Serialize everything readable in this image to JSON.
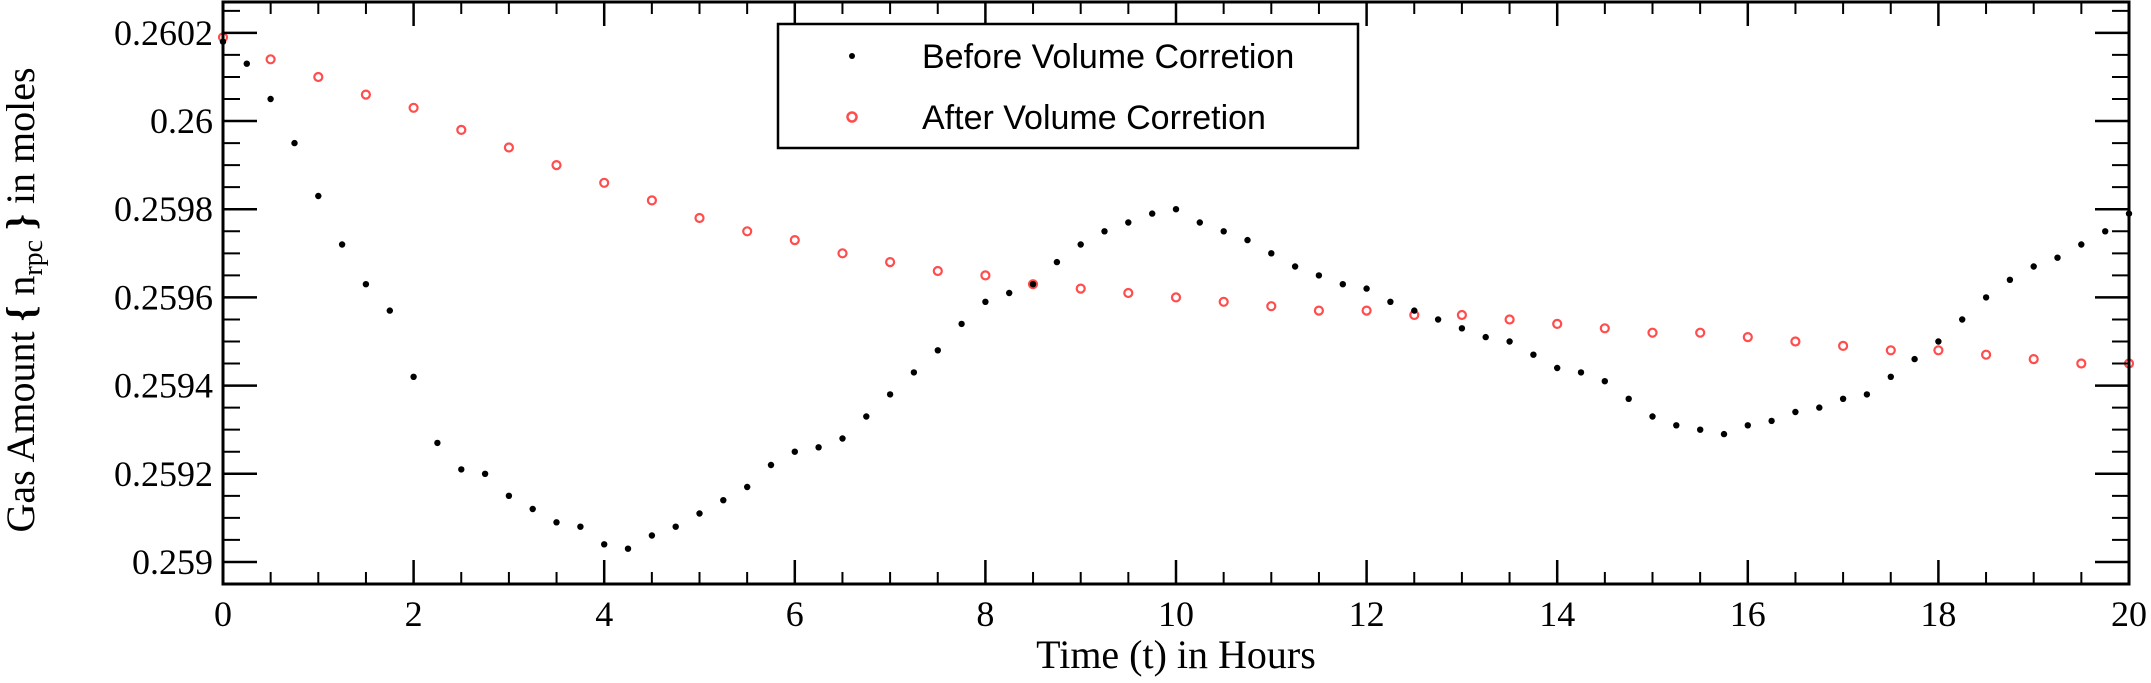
{
  "chart_data": {
    "type": "scatter",
    "xlabel": "Time (t) in Hours",
    "ylabel": {
      "prefix": "Gas Amount ",
      "symbol": "n",
      "subscript": "rpc",
      "suffix": " in moles"
    },
    "xlim": [
      0,
      20
    ],
    "ylim": [
      0.25895,
      0.26027
    ],
    "x_ticks": [
      {
        "value": 0,
        "label": "0"
      },
      {
        "value": 2,
        "label": "2"
      },
      {
        "value": 4,
        "label": "4"
      },
      {
        "value": 6,
        "label": "6"
      },
      {
        "value": 8,
        "label": "8"
      },
      {
        "value": 10,
        "label": "10"
      },
      {
        "value": 12,
        "label": "12"
      },
      {
        "value": 14,
        "label": "14"
      },
      {
        "value": 16,
        "label": "16"
      },
      {
        "value": 18,
        "label": "18"
      },
      {
        "value": 20,
        "label": "20"
      }
    ],
    "y_ticks": [
      {
        "value": 0.259,
        "label": "0.259"
      },
      {
        "value": 0.2592,
        "label": "0.2592"
      },
      {
        "value": 0.2594,
        "label": "0.2594"
      },
      {
        "value": 0.2596,
        "label": "0.2596"
      },
      {
        "value": 0.2598,
        "label": "0.2598"
      },
      {
        "value": 0.26,
        "label": "0.26"
      },
      {
        "value": 0.2602,
        "label": "0.2602"
      }
    ],
    "legend_position": "top-center",
    "grid": false,
    "series": [
      {
        "name": "Before Volume Corretion",
        "marker": "dot",
        "color": "#000000",
        "x": [
          0,
          0.25,
          0.5,
          0.75,
          1,
          1.25,
          1.5,
          1.75,
          2,
          2.25,
          2.5,
          2.75,
          3,
          3.25,
          3.5,
          3.75,
          4,
          4.25,
          4.5,
          4.75,
          5,
          5.25,
          5.5,
          5.75,
          6,
          6.25,
          6.5,
          6.75,
          7,
          7.25,
          7.5,
          7.75,
          8,
          8.25,
          8.5,
          8.75,
          9,
          9.25,
          9.5,
          9.75,
          10,
          10.25,
          10.5,
          10.75,
          11,
          11.25,
          11.5,
          11.75,
          12,
          12.25,
          12.5,
          12.75,
          13,
          13.25,
          13.5,
          13.75,
          14,
          14.25,
          14.5,
          14.75,
          15,
          15.25,
          15.5,
          15.75,
          16,
          16.25,
          16.5,
          16.75,
          17,
          17.25,
          17.5,
          17.75,
          18,
          18.25,
          18.5,
          18.75,
          19,
          19.25,
          19.5,
          19.75,
          20
        ],
        "y": [
          0.26018,
          0.26013,
          0.26005,
          0.25995,
          0.25983,
          0.25972,
          0.25963,
          0.25957,
          0.25942,
          0.25927,
          0.25921,
          0.2592,
          0.25915,
          0.25912,
          0.25909,
          0.25908,
          0.25904,
          0.25903,
          0.25906,
          0.25908,
          0.25911,
          0.25914,
          0.25917,
          0.25922,
          0.25925,
          0.25926,
          0.25928,
          0.25933,
          0.25938,
          0.25943,
          0.25948,
          0.25954,
          0.25959,
          0.25961,
          0.25963,
          0.25968,
          0.25972,
          0.25975,
          0.25977,
          0.25979,
          0.2598,
          0.25977,
          0.25975,
          0.25973,
          0.2597,
          0.25967,
          0.25965,
          0.25963,
          0.25962,
          0.25959,
          0.25957,
          0.25955,
          0.25953,
          0.25951,
          0.2595,
          0.25947,
          0.25944,
          0.25943,
          0.25941,
          0.25937,
          0.25933,
          0.25931,
          0.2593,
          0.25929,
          0.25931,
          0.25932,
          0.25934,
          0.25935,
          0.25937,
          0.25938,
          0.25942,
          0.25946,
          0.2595,
          0.25955,
          0.2596,
          0.25964,
          0.25967,
          0.25969,
          0.25972,
          0.25975,
          0.25979
        ]
      },
      {
        "name": "After Volume Corretion",
        "marker": "open-circle",
        "color": "#ff4d4d",
        "x": [
          0,
          0.5,
          1,
          1.5,
          2,
          2.5,
          3,
          3.5,
          4,
          4.5,
          5,
          5.5,
          6,
          6.5,
          7,
          7.5,
          8,
          8.5,
          9,
          9.5,
          10,
          10.5,
          11,
          11.5,
          12,
          12.5,
          13,
          13.5,
          14,
          14.5,
          15,
          15.5,
          16,
          16.5,
          17,
          17.5,
          18,
          18.5,
          19,
          19.5,
          20
        ],
        "y": [
          0.26019,
          0.26014,
          0.2601,
          0.26006,
          0.26003,
          0.25998,
          0.25994,
          0.2599,
          0.25986,
          0.25982,
          0.25978,
          0.25975,
          0.25973,
          0.2597,
          0.25968,
          0.25966,
          0.25965,
          0.25963,
          0.25962,
          0.25961,
          0.2596,
          0.25959,
          0.25958,
          0.25957,
          0.25957,
          0.25956,
          0.25956,
          0.25955,
          0.25954,
          0.25953,
          0.25952,
          0.25952,
          0.25951,
          0.2595,
          0.25949,
          0.25948,
          0.25948,
          0.25947,
          0.25946,
          0.25945,
          0.25945
        ]
      }
    ]
  }
}
